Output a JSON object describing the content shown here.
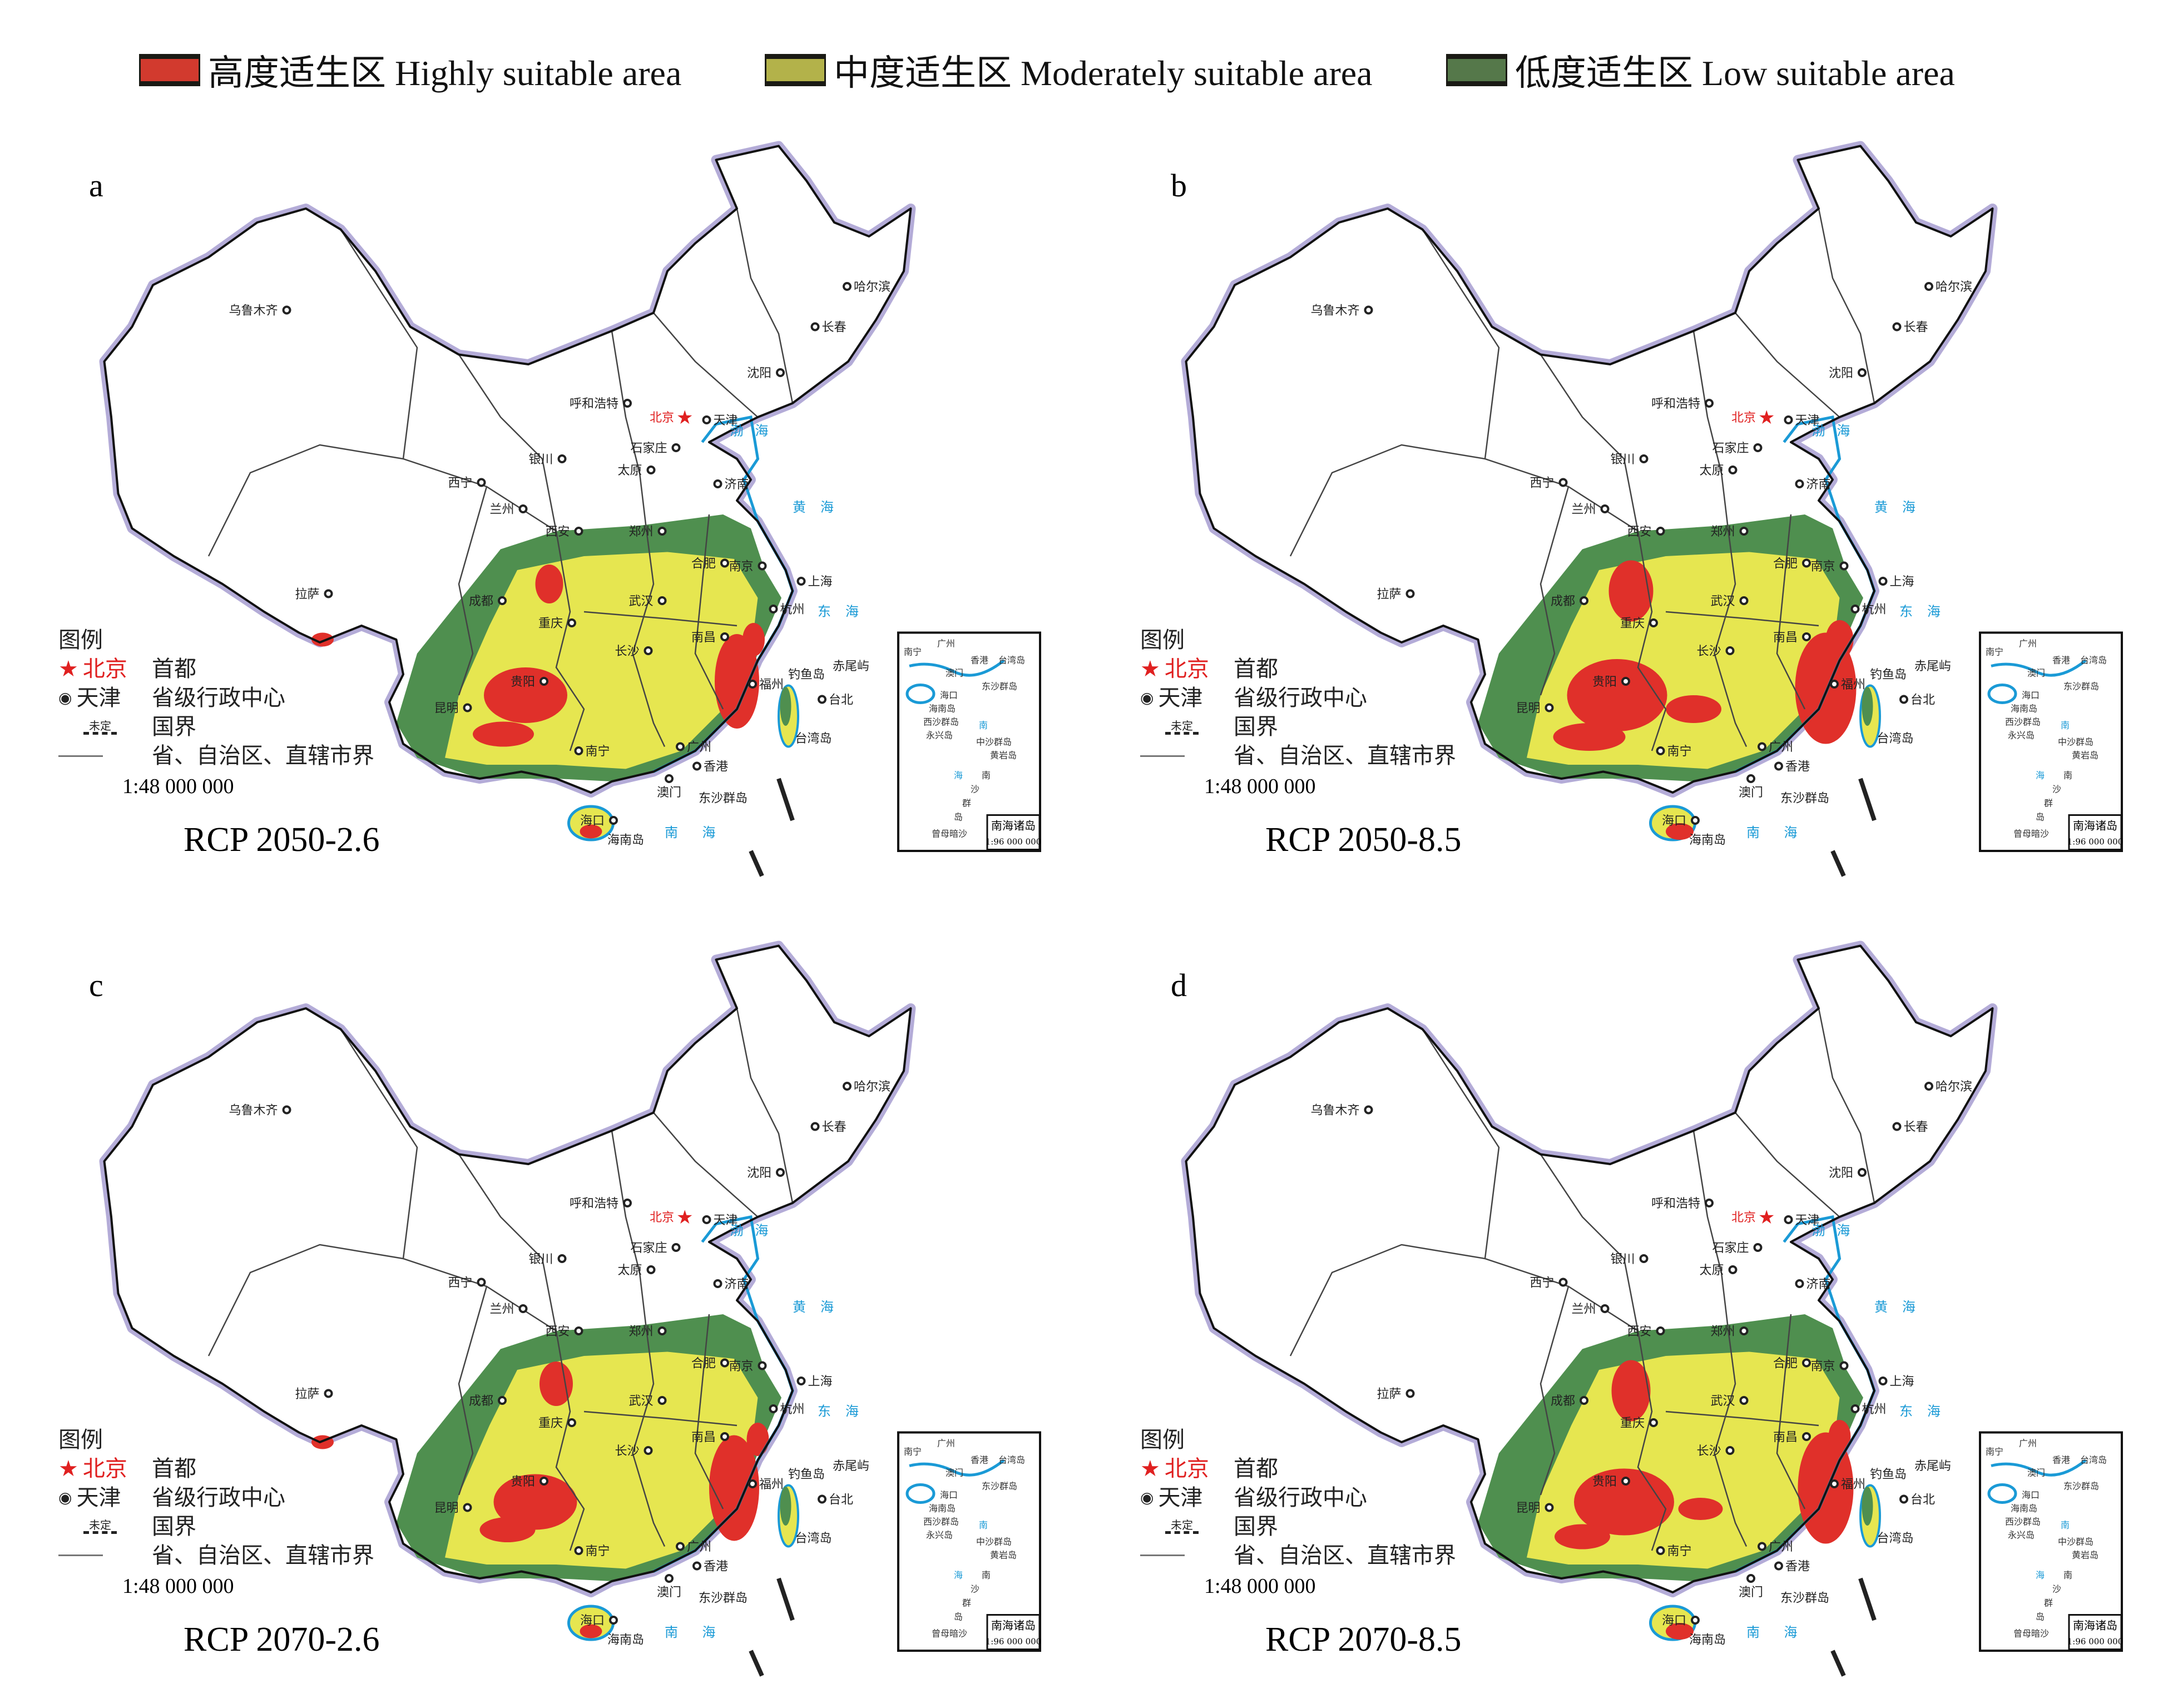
{
  "legend": [
    {
      "label": "高度适生区 Highly suitable area",
      "color": "#d23a2e"
    },
    {
      "label": "中度适生区 Moderately suitable area",
      "color": "#b3b24a"
    },
    {
      "label": "低度适生区 Low suitable area",
      "color": "#55784a"
    }
  ],
  "map_colors": {
    "high": "#e0302a",
    "moderate": "#e6e650",
    "low": "#4f8f4f",
    "water": "#1a9ad6",
    "border_glow": "#b4acd8"
  },
  "panels": [
    {
      "letter": "a",
      "title": "RCP 2050-2.6"
    },
    {
      "letter": "b",
      "title": "RCP 2050-8.5"
    },
    {
      "letter": "c",
      "title": "RCP 2070-2.6"
    },
    {
      "letter": "d",
      "title": "RCP 2070-8.5"
    }
  ],
  "map_legend": {
    "heading": "图例",
    "capital_name": "北京",
    "capital_label": "首都",
    "province_name": "天津",
    "province_label": "省级行政中心",
    "undetermined": "未定",
    "national_border": "国界",
    "province_border": "省、自治区、直辖市界",
    "scale": "1:48 000 000"
  },
  "cities": [
    "乌鲁木齐",
    "哈尔滨",
    "长春",
    "沈阳",
    "呼和浩特",
    "北京",
    "天津",
    "石家庄",
    "银川",
    "太原",
    "济南",
    "西宁",
    "兰州",
    "西安",
    "郑州",
    "合肥",
    "南京",
    "上海",
    "成都",
    "武汉",
    "杭州",
    "拉萨",
    "重庆",
    "长沙",
    "南昌",
    "福州",
    "贵阳",
    "昆明",
    "台北",
    "南宁",
    "广州",
    "香港",
    "澳门",
    "海口"
  ],
  "places": [
    "海南岛",
    "台湾岛",
    "东沙群岛",
    "钓鱼岛",
    "赤尾屿"
  ],
  "seas": [
    "渤",
    "海",
    "黄",
    "海",
    "东",
    "海",
    "南",
    "海"
  ],
  "inset": {
    "title": "南海诸岛",
    "scale": "1:96 000 000",
    "labels": [
      "南宁",
      "广州",
      "香港",
      "澳门",
      "台湾岛",
      "东沙群岛",
      "海口",
      "海南岛",
      "西沙群岛",
      "永兴岛",
      "中沙群岛",
      "黄岩岛",
      "南",
      "海",
      "南",
      "沙",
      "群",
      "岛",
      "曾母暗沙"
    ]
  }
}
